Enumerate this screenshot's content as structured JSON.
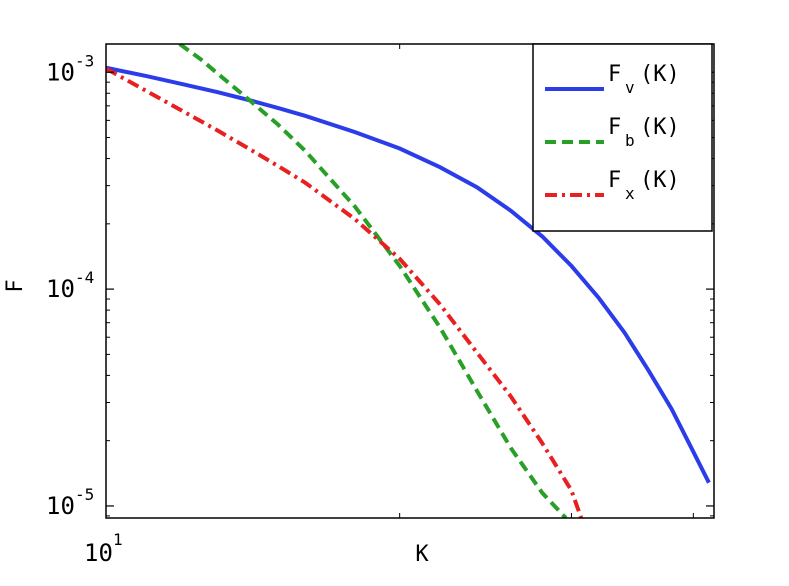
{
  "chart_data": {
    "type": "line",
    "xscale": "log",
    "yscale": "log",
    "xlabel": "K",
    "ylabel": "F",
    "xlim": [
      10,
      42
    ],
    "ylim": [
      8.8e-06,
      0.00135
    ],
    "grid": false,
    "legend_position": "top-right",
    "x_ticks": [
      {
        "base": "10",
        "exp": "1",
        "value": 10
      }
    ],
    "y_ticks": [
      {
        "base": "10",
        "exp": "-3",
        "value": 0.001
      },
      {
        "base": "10",
        "exp": "-4",
        "value": 0.0001
      },
      {
        "base": "10",
        "exp": "-5",
        "value": 1e-05
      }
    ],
    "series": [
      {
        "name": "F",
        "subscript": "v",
        "suffix": "(K)",
        "color": "#2b3de8",
        "dash": "solid",
        "x": [
          10,
          11,
          12,
          13,
          14,
          15,
          16,
          18,
          20,
          22,
          24,
          26,
          28,
          30,
          32,
          34,
          36,
          38,
          40,
          41.5
        ],
        "y": [
          0.00105,
          0.00096,
          0.00088,
          0.00081,
          0.000745,
          0.000685,
          0.00063,
          0.00053,
          0.000445,
          0.000365,
          0.000295,
          0.00023,
          0.000175,
          0.000128,
          9.1e-05,
          6.3e-05,
          4.2e-05,
          2.8e-05,
          1.78e-05,
          1.28e-05
        ]
      },
      {
        "name": "F",
        "subscript": "b",
        "suffix": "(K)",
        "color": "#28a028",
        "dash": "dashed",
        "x": [
          11.9,
          12.5,
          13,
          14,
          15,
          16,
          18,
          20,
          22,
          24,
          26,
          28,
          29.6
        ],
        "y": [
          0.00135,
          0.00115,
          0.00099,
          0.00075,
          0.000575,
          0.000435,
          0.00024,
          0.000128,
          6.65e-05,
          3.4e-05,
          1.85e-05,
          1.15e-05,
          8.8e-06
        ]
      },
      {
        "name": "F",
        "subscript": "x",
        "suffix": "(K)",
        "color": "#e82020",
        "dash": "dashdot",
        "x": [
          10,
          11,
          12,
          13,
          14,
          15,
          16,
          18,
          20,
          22,
          24,
          26,
          28,
          30,
          30.7
        ],
        "y": [
          0.00104,
          0.00082,
          0.00066,
          0.00054,
          0.000445,
          0.00037,
          0.00031,
          0.00021,
          0.000138,
          8.5e-05,
          5.1e-05,
          3.2e-05,
          1.95e-05,
          1.18e-05,
          8.8e-06
        ]
      }
    ]
  }
}
